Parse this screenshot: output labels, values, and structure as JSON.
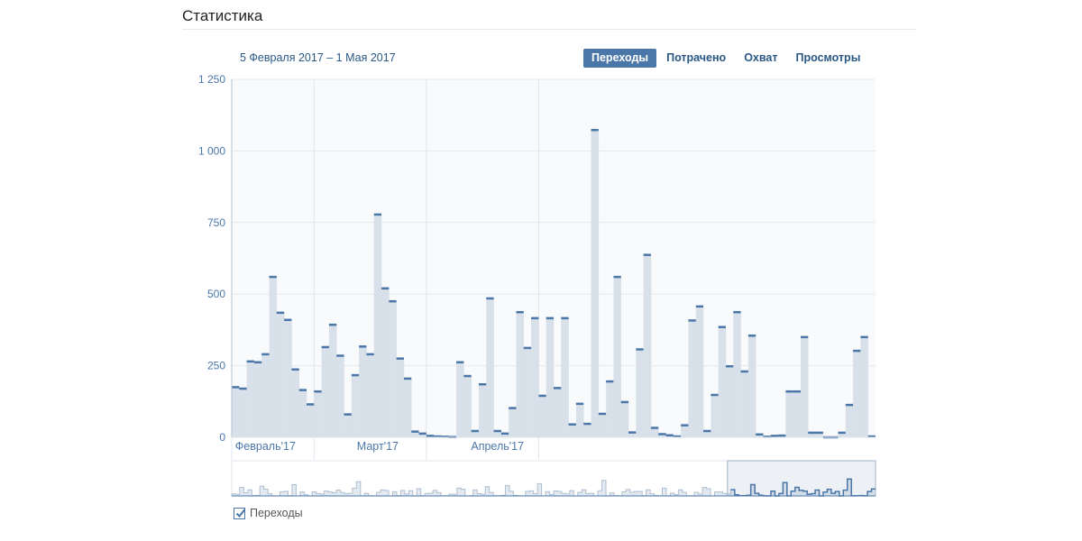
{
  "header": {
    "title": "Статистика"
  },
  "date_range": "5 Февраля 2017 – 1 Мая 2017",
  "tabs": [
    {
      "label": "Переходы",
      "active": true
    },
    {
      "label": "Потрачено",
      "active": false
    },
    {
      "label": "Охват",
      "active": false
    },
    {
      "label": "Просмотры",
      "active": false
    }
  ],
  "legend": {
    "label": "Переходы",
    "checked": true
  },
  "colors": {
    "accent": "#4a76a8",
    "fill": "#d8e1ea",
    "line": "#4a76a8",
    "grid": "#e7e8ec",
    "axis_text": "#4a76a8"
  },
  "chart_data": {
    "type": "area",
    "series": [
      {
        "name": "Переходы"
      }
    ],
    "values": [
      175,
      170,
      265,
      262,
      290,
      560,
      435,
      410,
      237,
      165,
      115,
      160,
      315,
      393,
      285,
      80,
      217,
      317,
      290,
      778,
      520,
      475,
      275,
      205,
      20,
      13,
      5,
      3,
      2,
      1,
      262,
      214,
      22,
      185,
      485,
      22,
      13,
      102,
      437,
      312,
      416,
      145,
      416,
      172,
      416,
      45,
      117,
      47,
      1073,
      82,
      195,
      560,
      123,
      17,
      307,
      637,
      33,
      11,
      7,
      3,
      42,
      408,
      457,
      22,
      148,
      385,
      248,
      437,
      230,
      355,
      10,
      2,
      5,
      6,
      160,
      160,
      350,
      16,
      16,
      0,
      0,
      16,
      113,
      302,
      350,
      3
    ],
    "y_ticks": [
      "0",
      "250",
      "500",
      "750",
      "1 000",
      "1 250"
    ],
    "y_tick_values": [
      0,
      250,
      500,
      750,
      1000,
      1250
    ],
    "ylim": [
      0,
      1250
    ],
    "month_labels": [
      "Февраль'17",
      "Март'17",
      "Апрель'17"
    ],
    "month_label_index": [
      4.5,
      19.5,
      35.5
    ],
    "month_boundaries": [
      0,
      11,
      26,
      41
    ],
    "grid": true
  }
}
